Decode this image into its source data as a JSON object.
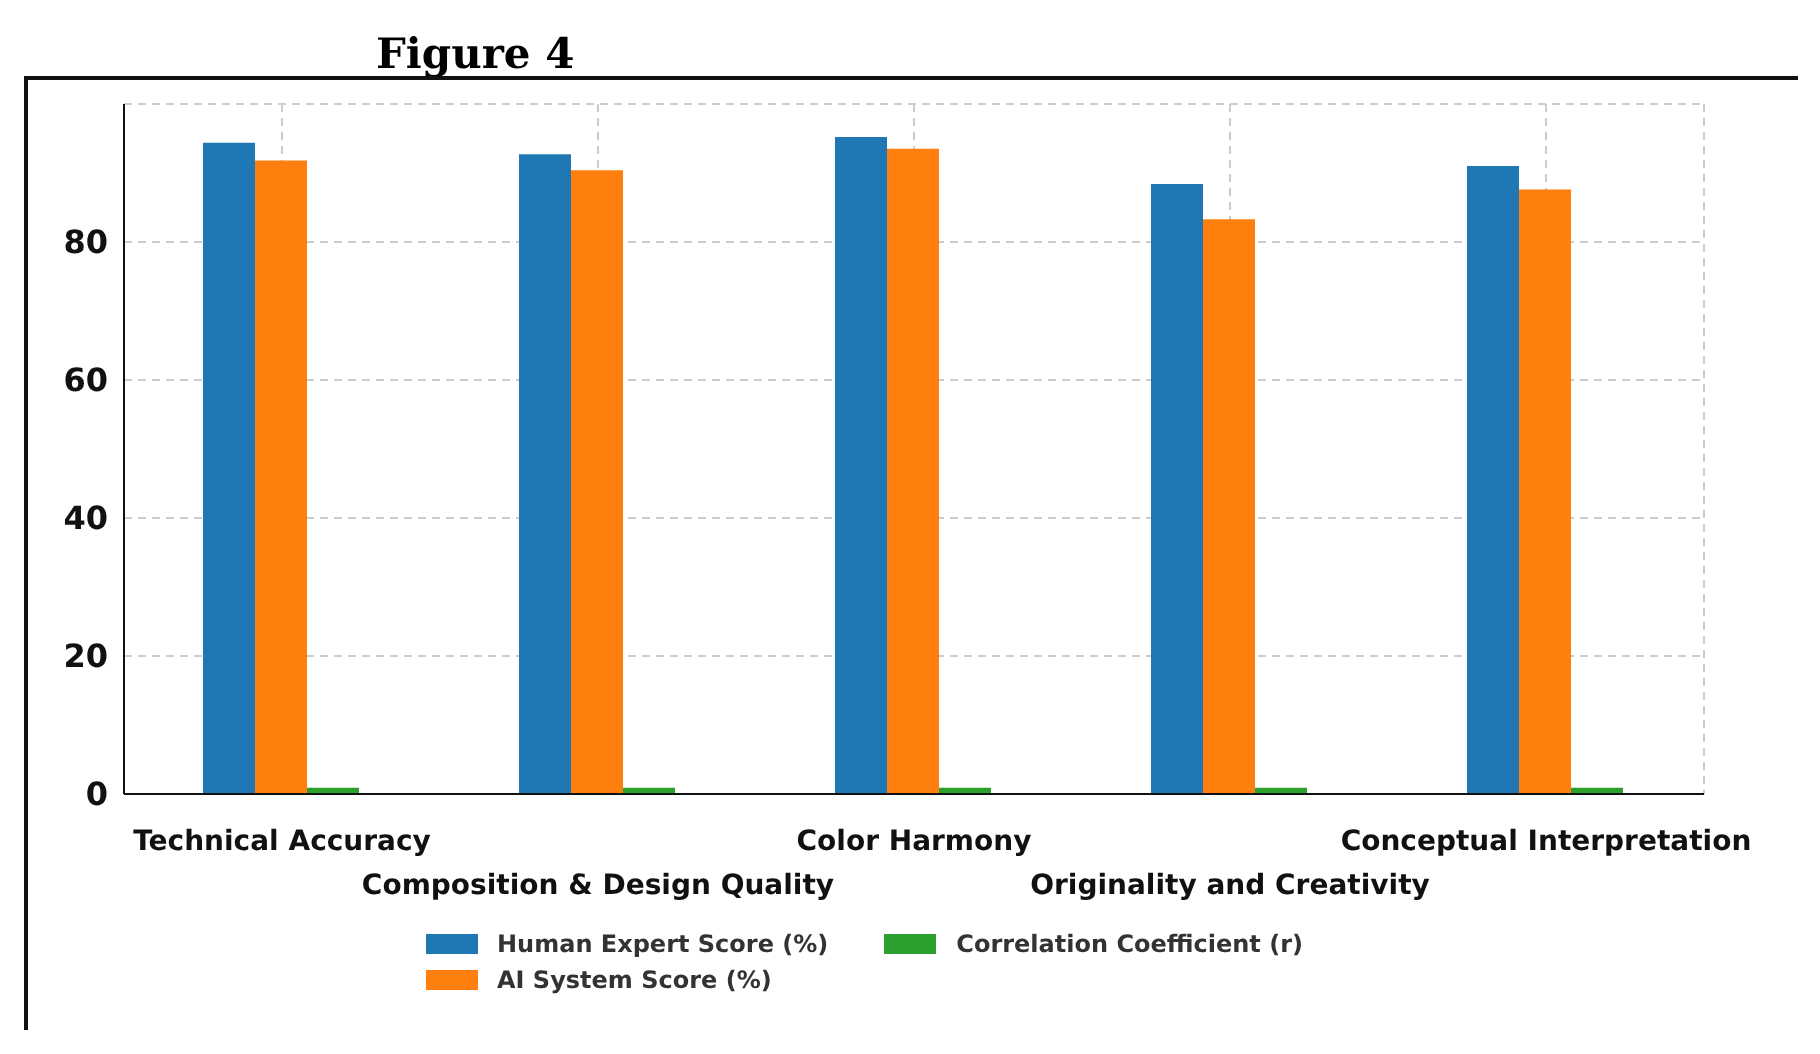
{
  "chart_data": {
    "type": "bar",
    "title": "Figure 4",
    "categories": [
      "Technical Accuracy",
      "Composition & Design Quality",
      "Color Harmony",
      "Originality and Creativity",
      "Conceptual Interpretation"
    ],
    "series": [
      {
        "name": "Human Expert Score (%)",
        "color": "#1f77b4",
        "values": [
          94.4,
          92.7,
          95.2,
          88.4,
          91.0
        ]
      },
      {
        "name": "AI System Score (%)",
        "color": "#ff7f0e",
        "values": [
          91.8,
          90.4,
          93.5,
          83.3,
          87.6
        ]
      },
      {
        "name": "Correlation Coefficient (r)",
        "color": "#2ca02c",
        "values": [
          0.9,
          0.9,
          0.9,
          0.9,
          0.9
        ]
      }
    ],
    "ylim": [
      0,
      100
    ],
    "yticks": [
      0,
      20,
      40,
      60,
      80
    ],
    "grid": true,
    "legend": "bottom"
  }
}
